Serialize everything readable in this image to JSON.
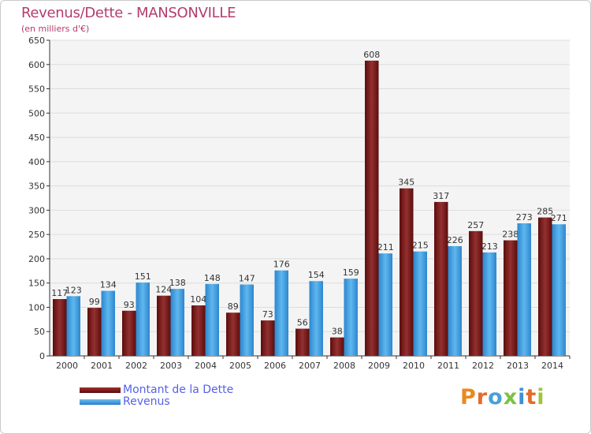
{
  "header": {
    "title": "Revenus/Dette - MANSONVILLE",
    "subtitle": "(en milliers d'€)"
  },
  "chart_data": {
    "type": "bar",
    "title": "Revenus/Dette - MANSONVILLE",
    "ylabel": "(en milliers d'€)",
    "xlabel": "",
    "ylim": [
      0,
      650
    ],
    "yticks": [
      0,
      50,
      100,
      150,
      200,
      250,
      300,
      350,
      400,
      450,
      500,
      550,
      600,
      650
    ],
    "grid": true,
    "legend_position": "bottom-left",
    "categories": [
      "2000",
      "2001",
      "2002",
      "2003",
      "2004",
      "2005",
      "2006",
      "2007",
      "2008",
      "2009",
      "2010",
      "2011",
      "2012",
      "2013",
      "2014"
    ],
    "series": [
      {
        "name": "Montant de la Dette",
        "color": "#7a1c1c",
        "values": [
          117,
          99,
          93,
          124,
          104,
          89,
          73,
          56,
          38,
          608,
          345,
          317,
          257,
          238,
          285
        ]
      },
      {
        "name": "Revenus",
        "color": "#3f9de0",
        "values": [
          123,
          134,
          151,
          138,
          148,
          147,
          176,
          154,
          159,
          211,
          215,
          226,
          213,
          273,
          271
        ]
      }
    ]
  },
  "logo": {
    "text": "Proxiti",
    "colors": [
      "#e98a1e",
      "#e36b2b",
      "#4aa0d8",
      "#7cc142",
      "#3f8fd4",
      "#e36b2b",
      "#9ec53a"
    ]
  }
}
